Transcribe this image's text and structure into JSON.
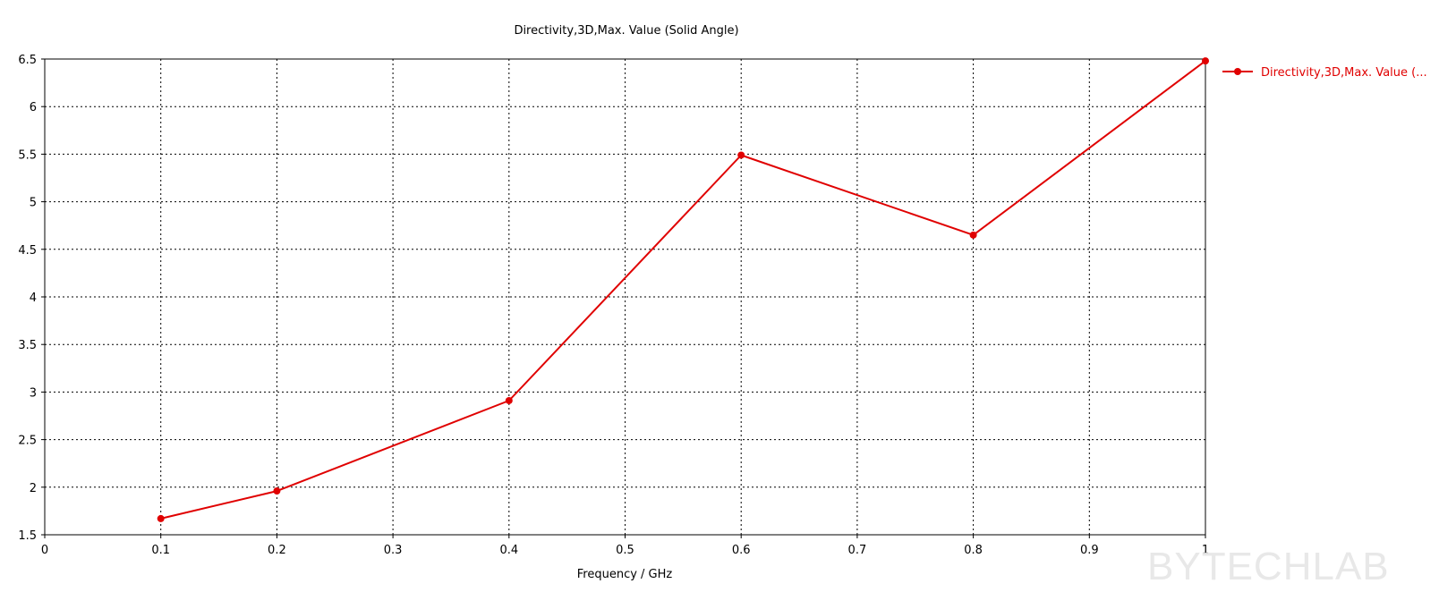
{
  "colors": {
    "series": "#e00000",
    "grid": "#000000",
    "watermark": "#e8e8e8"
  },
  "watermark": "BYTECHLAB",
  "chart_data": {
    "type": "line",
    "title": "Directivity,3D,Max. Value (Solid Angle)",
    "xlabel": "Frequency / GHz",
    "ylabel": "",
    "xlim": [
      0,
      1
    ],
    "ylim": [
      1.5,
      6.5
    ],
    "x_ticks": [
      "0",
      "0.1",
      "0.2",
      "0.3",
      "0.4",
      "0.5",
      "0.6",
      "0.7",
      "0.8",
      "0.9",
      "1"
    ],
    "y_ticks": [
      "1.5",
      "2",
      "2.5",
      "3",
      "3.5",
      "4",
      "4.5",
      "5",
      "5.5",
      "6",
      "6.5"
    ],
    "grid": true,
    "grid_style": "dotted",
    "legend_position": "right",
    "series": [
      {
        "name": "Directivity,3D,Max. Value (...",
        "marker": "circle",
        "x": [
          0.1,
          0.2,
          0.4,
          0.6,
          0.8,
          1.0
        ],
        "y": [
          1.67,
          1.96,
          2.91,
          5.49,
          4.65,
          6.48
        ]
      }
    ]
  }
}
